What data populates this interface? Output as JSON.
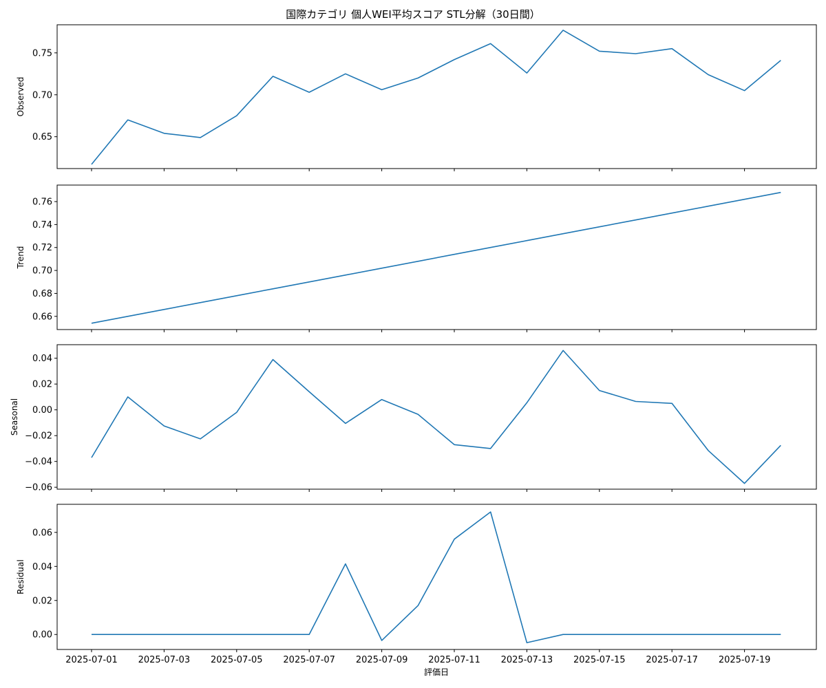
{
  "chart_data": {
    "type": "line",
    "title": "国際カテゴリ 個人WEI平均スコア STL分解（30日間）",
    "xlabel": "評価日",
    "line_color": "#1f77b4",
    "x": [
      "2025-07-01",
      "2025-07-02",
      "2025-07-03",
      "2025-07-04",
      "2025-07-05",
      "2025-07-06",
      "2025-07-07",
      "2025-07-08",
      "2025-07-09",
      "2025-07-10",
      "2025-07-11",
      "2025-07-12",
      "2025-07-13",
      "2025-07-14",
      "2025-07-15",
      "2025-07-16",
      "2025-07-17",
      "2025-07-18",
      "2025-07-19",
      "2025-07-20"
    ],
    "x_tick_labels": [
      "2025-07-01",
      "2025-07-03",
      "2025-07-05",
      "2025-07-07",
      "2025-07-09",
      "2025-07-11",
      "2025-07-13",
      "2025-07-15",
      "2025-07-17",
      "2025-07-19"
    ],
    "panels": [
      {
        "ylabel": "Observed",
        "ylim": [
          0.612,
          0.7835
        ],
        "yticks": [
          0.65,
          0.7,
          0.75
        ],
        "ytick_labels": [
          "0.65",
          "0.70",
          "0.75"
        ],
        "values": [
          0.617,
          0.67,
          0.654,
          0.649,
          0.675,
          0.722,
          0.703,
          0.725,
          0.706,
          0.72,
          0.742,
          0.761,
          0.726,
          0.777,
          0.752,
          0.749,
          0.755,
          0.724,
          0.705,
          0.741
        ]
      },
      {
        "ylabel": "Trend",
        "ylim": [
          0.6485,
          0.7744
        ],
        "yticks": [
          0.66,
          0.68,
          0.7,
          0.72,
          0.74,
          0.76
        ],
        "ytick_labels": [
          "0.66",
          "0.68",
          "0.70",
          "0.72",
          "0.74",
          "0.76"
        ],
        "values": [
          0.654,
          0.66,
          0.666,
          0.672,
          0.678,
          0.684,
          0.69,
          0.696,
          0.702,
          0.708,
          0.714,
          0.72,
          0.726,
          0.732,
          0.738,
          0.744,
          0.75,
          0.756,
          0.762,
          0.768
        ]
      },
      {
        "ylabel": "Seasonal",
        "ylim": [
          -0.0615,
          0.0505
        ],
        "yticks": [
          -0.06,
          -0.04,
          -0.02,
          0.0,
          0.02,
          0.04
        ],
        "ytick_labels": [
          "−0.06",
          "−0.04",
          "−0.02",
          "0.00",
          "0.02",
          "0.04"
        ],
        "values": [
          -0.037,
          0.01,
          -0.0125,
          -0.0225,
          -0.002,
          0.039,
          0.014,
          -0.0105,
          0.008,
          -0.0035,
          -0.027,
          -0.03,
          0.0055,
          0.046,
          0.015,
          0.0065,
          0.005,
          -0.0315,
          -0.057,
          -0.0275
        ]
      },
      {
        "ylabel": "Residual",
        "ylim": [
          -0.0088,
          0.0765
        ],
        "yticks": [
          0.0,
          0.02,
          0.04,
          0.06
        ],
        "ytick_labels": [
          "0.00",
          "0.02",
          "0.04",
          "0.06"
        ],
        "values": [
          0,
          0,
          0,
          0,
          0,
          0,
          0,
          0.0415,
          -0.0035,
          0.017,
          0.056,
          0.072,
          -0.0048,
          0,
          0,
          0,
          0,
          0,
          0,
          0
        ]
      }
    ]
  }
}
